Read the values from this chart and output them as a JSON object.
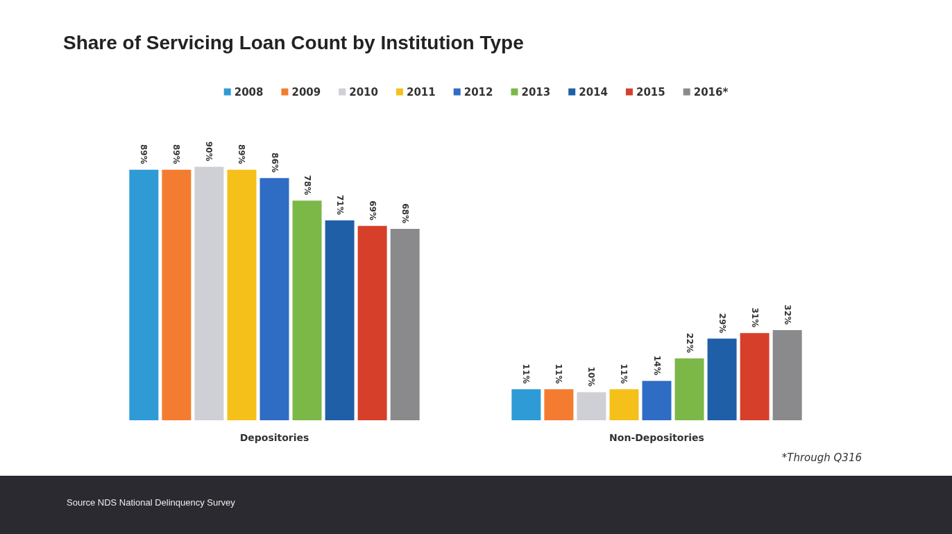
{
  "chart_data": {
    "type": "bar",
    "title": "Share of Servicing Loan Count by Institution Type",
    "categories": [
      "Depositories",
      "Non-Depositories"
    ],
    "series": [
      {
        "name": "2008",
        "color": "#2e9bd6",
        "values": [
          89,
          11
        ],
        "value_labels": [
          "89%",
          "11%"
        ]
      },
      {
        "name": "2009",
        "color": "#f47c30",
        "values": [
          89,
          11
        ],
        "value_labels": [
          "89%",
          "11%"
        ]
      },
      {
        "name": "2010",
        "color": "#cfd0d6",
        "values": [
          90,
          10
        ],
        "value_labels": [
          "90%",
          "10%"
        ]
      },
      {
        "name": "2011",
        "color": "#f5c01a",
        "values": [
          89,
          11
        ],
        "value_labels": [
          "89%",
          "11%"
        ]
      },
      {
        "name": "2012",
        "color": "#2f6cc4",
        "values": [
          86,
          14
        ],
        "value_labels": [
          "86%",
          "14%"
        ]
      },
      {
        "name": "2013",
        "color": "#7cb848",
        "values": [
          78,
          22
        ],
        "value_labels": [
          "78%",
          "22%"
        ]
      },
      {
        "name": "2014",
        "color": "#1f5fa8",
        "values": [
          71,
          29
        ],
        "value_labels": [
          "71%",
          "29%"
        ]
      },
      {
        "name": "2015",
        "color": "#d6402a",
        "values": [
          69,
          31
        ],
        "value_labels": [
          "69%",
          "31%"
        ]
      },
      {
        "name": "2016*",
        "color": "#8a8a8c",
        "values": [
          68,
          32
        ],
        "value_labels": [
          "68%",
          "32%"
        ]
      }
    ],
    "legend": "top",
    "grid": false,
    "annotations": [
      "*Through Q316",
      "Source NDS National Delinquency Survey"
    ]
  }
}
